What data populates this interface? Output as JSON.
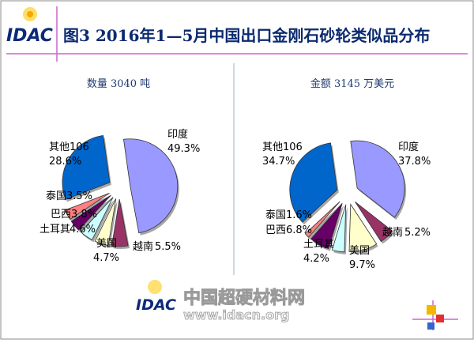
{
  "header": {
    "logo_text": "IDAC",
    "title": "图3  2016年1—5月中国出口金刚石砂轮类似品分布"
  },
  "watermark": {
    "logo_text": "IDAC",
    "site_name": "中国超硬材料网",
    "url": "www.idacn.org"
  },
  "colors": {
    "印度": "#9999ff",
    "越南": "#993366",
    "美国": "#ffffcc",
    "土耳其": "#ccffff",
    "巴西": "#660066",
    "泰国": "#ff8080",
    "其他": "#0066cc",
    "title_text": "#0b2a6f",
    "accent_line": "#cc66cc"
  },
  "chart_data": [
    {
      "type": "pie",
      "title": "数量 3040 吨",
      "categories": [
        "印度",
        "越南",
        "美国",
        "土耳其",
        "巴西",
        "泰国",
        "其他106"
      ],
      "values": [
        49.3,
        5.5,
        4.7,
        4.6,
        3.8,
        3.5,
        28.6
      ],
      "labels": [
        "49.3%",
        "5.5%",
        "4.7%",
        "4.6%",
        "3.8%",
        "3.5%",
        "28.6%"
      ]
    },
    {
      "type": "pie",
      "title": "金额 3145 万美元",
      "categories": [
        "印度",
        "越南",
        "美国",
        "土耳其",
        "巴西",
        "泰国",
        "其他106"
      ],
      "values": [
        37.8,
        5.2,
        9.7,
        4.2,
        6.8,
        1.6,
        34.7
      ],
      "labels": [
        "37.8%",
        "5.2%",
        "9.7%",
        "4.2%",
        "6.8%",
        "1.6%",
        "34.7%"
      ]
    }
  ]
}
